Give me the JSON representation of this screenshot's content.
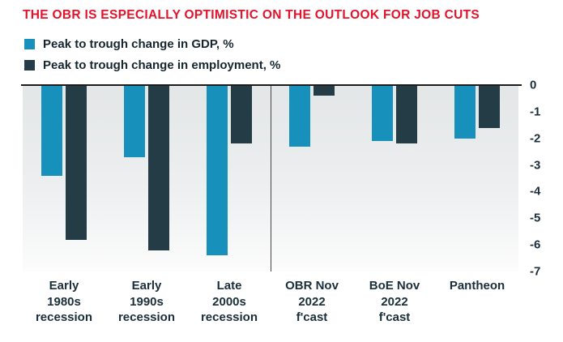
{
  "header": {
    "title": "THE OBR IS ESPECIALLY OPTIMISTIC ON THE OUTLOOK FOR JOB CUTS"
  },
  "colors": {
    "title": "#E4122B",
    "gdp_series": "#1791BC",
    "employment_series": "#233C46",
    "axis_text": "#1B2F3A"
  },
  "legend": [
    {
      "label": "Peak to trough change in GDP, %",
      "color": "#1791BC"
    },
    {
      "label": "Peak to trough change in employment, %",
      "color": "#233C46"
    }
  ],
  "chart_data": {
    "type": "bar",
    "title": "THE OBR IS ESPECIALLY OPTIMISTIC ON THE OUTLOOK FOR JOB CUTS",
    "categories": [
      "Early 1980s recession",
      "Early 1990s recession",
      "Late 2000s recession",
      "OBR Nov 2022 f'cast",
      "BoE Nov 2022 f'cast",
      "Pantheon"
    ],
    "category_label_lines": [
      [
        "Early",
        "1980s",
        "recession"
      ],
      [
        "Early",
        "1990s",
        "recession"
      ],
      [
        "Late",
        "2000s",
        "recession"
      ],
      [
        "OBR Nov",
        "2022",
        "f'cast"
      ],
      [
        "BoE Nov",
        "2022",
        "f'cast"
      ],
      [
        "Pantheon"
      ]
    ],
    "series": [
      {
        "name": "Peak to trough change in GDP, %",
        "color": "#1791BC",
        "values": [
          -3.4,
          -2.7,
          -6.4,
          -2.3,
          -2.1,
          -2.0
        ]
      },
      {
        "name": "Peak to trough change in employment, %",
        "color": "#233C46",
        "values": [
          -5.8,
          -6.2,
          -2.2,
          -0.4,
          -2.2,
          -1.6
        ]
      }
    ],
    "y_axis": {
      "min": -7,
      "max": 0,
      "ticks": [
        0,
        -1,
        -2,
        -3,
        -4,
        -5,
        -6,
        -7
      ]
    },
    "separator_after_category_index": 2,
    "grid": false,
    "legend_position": "top-left",
    "xlabel": "",
    "ylabel": ""
  }
}
